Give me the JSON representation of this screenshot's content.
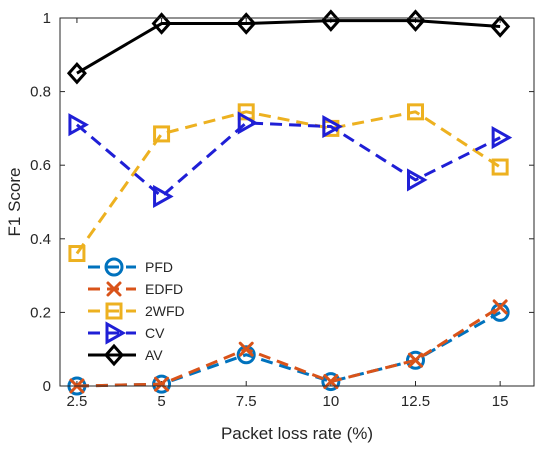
{
  "chart_data": {
    "type": "line",
    "title": "",
    "xlabel": "Packet loss rate (%)",
    "ylabel": "F1 Score",
    "x": [
      2.5,
      5,
      7.5,
      10,
      12.5,
      15
    ],
    "x_ticks": [
      "2.5",
      "5",
      "7.5",
      "10",
      "12.5",
      "15"
    ],
    "y_ticks": [
      "0",
      "0.2",
      "0.4",
      "0.6",
      "0.8",
      "1"
    ],
    "xlim": [
      2,
      16
    ],
    "ylim": [
      0,
      1
    ],
    "grid": false,
    "legend_position": "lower-left",
    "series": [
      {
        "name": "PFD",
        "values": [
          0.0,
          0.005,
          0.085,
          0.012,
          0.07,
          0.2
        ],
        "color": "#0072BD",
        "marker": "circle",
        "line": "dashed"
      },
      {
        "name": "EDFD",
        "values": [
          0.0,
          0.005,
          0.1,
          0.012,
          0.07,
          0.215
        ],
        "color": "#D95319",
        "marker": "x",
        "line": "dashed"
      },
      {
        "name": "2WFD",
        "values": [
          0.36,
          0.685,
          0.745,
          0.7,
          0.745,
          0.595
        ],
        "color": "#EDB120",
        "marker": "square",
        "line": "dashed"
      },
      {
        "name": "CV",
        "values": [
          0.71,
          0.515,
          0.715,
          0.705,
          0.56,
          0.675
        ],
        "color": "#1F1FD6",
        "marker": "triangle-right",
        "line": "dashed"
      },
      {
        "name": "AV",
        "values": [
          0.85,
          0.985,
          0.985,
          0.993,
          0.993,
          0.977
        ],
        "color": "#000000",
        "marker": "diamond",
        "line": "solid"
      }
    ]
  }
}
